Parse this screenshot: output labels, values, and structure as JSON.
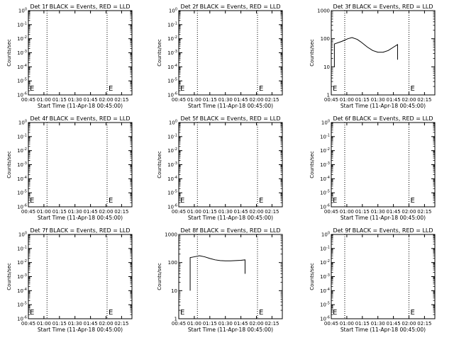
{
  "chart_data": [
    {
      "type": "line",
      "title": "Det 1f BLACK = Events, RED = LLD",
      "ylabel": "Counts/sec",
      "xlabel": "Start Time (11-Apr-18 00:45:00)",
      "y_scale": "log",
      "y_ticks": [
        "10^0",
        "10^-1",
        "10^-2",
        "10^-3",
        "10^-4",
        "10^-5",
        "10^-6"
      ],
      "x_ticks": [
        "00:45",
        "01:00",
        "01:15",
        "01:30",
        "01:45",
        "02:00",
        "02:15"
      ],
      "xlim": [
        "00:45",
        "02:25"
      ],
      "vlines": [
        "01:03",
        "02:01"
      ],
      "markers": [
        {
          "x": "00:45",
          "label": "E"
        },
        {
          "x": "02:01",
          "label": "E"
        }
      ],
      "series": []
    },
    {
      "type": "line",
      "title": "Det 2f BLACK = Events, RED = LLD",
      "ylabel": "Counts/sec",
      "xlabel": "Start Time (11-Apr-18 00:45:00)",
      "y_scale": "log",
      "y_ticks": [
        "10^0",
        "10^-1",
        "10^-2",
        "10^-3",
        "10^-4",
        "10^-5",
        "10^-6"
      ],
      "x_ticks": [
        "00:45",
        "01:00",
        "01:15",
        "01:30",
        "01:45",
        "02:00",
        "02:15"
      ],
      "xlim": [
        "00:45",
        "02:25"
      ],
      "vlines": [
        "01:03",
        "02:01"
      ],
      "markers": [
        {
          "x": "00:45",
          "label": "E"
        },
        {
          "x": "02:01",
          "label": "E"
        }
      ],
      "series": []
    },
    {
      "type": "line",
      "title": "Det 3f BLACK = Events, RED = LLD",
      "ylabel": "Counts/sec",
      "xlabel": "Start Time (11-Apr-18 00:45:00)",
      "y_scale": "log",
      "y_ticks": [
        "1",
        "10",
        "100",
        "1000"
      ],
      "x_ticks": [
        "00:45",
        "01:00",
        "01:15",
        "01:30",
        "01:45",
        "02:00",
        "02:15"
      ],
      "xlim": [
        "00:45",
        "02:25"
      ],
      "vlines": [
        "00:58",
        "02:00"
      ],
      "markers": [
        {
          "x": "00:45",
          "label": "E"
        },
        {
          "x": "02:00",
          "label": "E"
        }
      ],
      "series": [
        {
          "x": [
            "00:48",
            "00:48",
            "00:48",
            "00:55",
            "01:01",
            "01:05",
            "01:10",
            "01:14",
            "01:20",
            "01:25",
            "01:30",
            "01:35",
            "01:40",
            "01:45",
            "01:49",
            "01:49"
          ],
          "y": [
            10,
            60,
            65,
            80,
            100,
            110,
            95,
            75,
            50,
            38,
            33,
            33,
            38,
            50,
            62,
            18
          ]
        }
      ]
    },
    {
      "type": "line",
      "title": "Det 4f BLACK = Events, RED = LLD",
      "ylabel": "Counts/sec",
      "xlabel": "Start Time (11-Apr-18 00:45:00)",
      "y_scale": "log",
      "y_ticks": [
        "10^0",
        "10^-1",
        "10^-2",
        "10^-3",
        "10^-4",
        "10^-5",
        "10^-6"
      ],
      "x_ticks": [
        "00:45",
        "01:00",
        "01:15",
        "01:30",
        "01:45",
        "02:00",
        "02:15"
      ],
      "xlim": [
        "00:45",
        "02:25"
      ],
      "vlines": [
        "01:03",
        "02:01"
      ],
      "markers": [
        {
          "x": "00:45",
          "label": "E"
        },
        {
          "x": "02:01",
          "label": "E"
        }
      ],
      "series": []
    },
    {
      "type": "line",
      "title": "Det 5f BLACK = Events, RED = LLD",
      "ylabel": "Counts/sec",
      "xlabel": "Start Time (11-Apr-18 00:45:00)",
      "y_scale": "log",
      "y_ticks": [
        "10^0",
        "10^-1",
        "10^-2",
        "10^-3",
        "10^-4",
        "10^-5",
        "10^-6"
      ],
      "x_ticks": [
        "00:45",
        "01:00",
        "01:15",
        "01:30",
        "01:45",
        "02:00",
        "02:15"
      ],
      "xlim": [
        "00:45",
        "02:25"
      ],
      "vlines": [
        "01:03",
        "02:01"
      ],
      "markers": [
        {
          "x": "00:45",
          "label": "E"
        },
        {
          "x": "02:01",
          "label": "E"
        }
      ],
      "series": []
    },
    {
      "type": "line",
      "title": "Det 6f BLACK = Events, RED = LLD",
      "ylabel": "Counts/sec",
      "xlabel": "Start Time (11-Apr-18 00:45:00)",
      "y_scale": "log",
      "y_ticks": [
        "10^0",
        "10^-1",
        "10^-2",
        "10^-3",
        "10^-4",
        "10^-5",
        "10^-6"
      ],
      "x_ticks": [
        "00:45",
        "01:00",
        "01:15",
        "01:30",
        "01:45",
        "02:00",
        "02:15"
      ],
      "xlim": [
        "00:45",
        "02:25"
      ],
      "vlines": [
        "00:58",
        "02:00"
      ],
      "markers": [
        {
          "x": "00:45",
          "label": "E"
        },
        {
          "x": "02:00",
          "label": "E"
        }
      ],
      "series": []
    },
    {
      "type": "line",
      "title": "Det 7f BLACK = Events, RED = LLD",
      "ylabel": "Counts/sec",
      "xlabel": "Start Time (11-Apr-18 00:45:00)",
      "y_scale": "log",
      "y_ticks": [
        "10^0",
        "10^-1",
        "10^-2",
        "10^-3",
        "10^-4",
        "10^-5",
        "10^-6"
      ],
      "x_ticks": [
        "00:45",
        "01:00",
        "01:15",
        "01:30",
        "01:45",
        "02:00",
        "02:15"
      ],
      "xlim": [
        "00:45",
        "02:25"
      ],
      "vlines": [
        "01:03",
        "02:01"
      ],
      "markers": [
        {
          "x": "00:45",
          "label": "E"
        },
        {
          "x": "02:01",
          "label": "E"
        }
      ],
      "series": []
    },
    {
      "type": "line",
      "title": "Det 8f BLACK = Events, RED = LLD",
      "ylabel": "Counts/sec",
      "xlabel": "Start Time (11-Apr-18 00:45:00)",
      "y_scale": "log",
      "y_ticks": [
        "1",
        "10",
        "100",
        "1000"
      ],
      "x_ticks": [
        "00:45",
        "01:00",
        "01:15",
        "01:30",
        "01:45",
        "02:00",
        "02:15"
      ],
      "xlim": [
        "00:45",
        "02:25"
      ],
      "vlines": [
        "01:03",
        "02:01"
      ],
      "markers": [
        {
          "x": "00:45",
          "label": "E"
        },
        {
          "x": "02:01",
          "label": "E"
        }
      ],
      "series": [
        {
          "x": [
            "00:56",
            "00:56",
            "00:56",
            "01:00",
            "01:05",
            "01:10",
            "01:15",
            "01:20",
            "01:25",
            "01:30",
            "01:35",
            "01:40",
            "01:45",
            "01:49",
            "01:49"
          ],
          "y": [
            10,
            130,
            150,
            160,
            175,
            160,
            140,
            125,
            118,
            115,
            115,
            118,
            120,
            125,
            40
          ]
        }
      ]
    },
    {
      "type": "line",
      "title": "Det 9f BLACK = Events, RED = LLD",
      "ylabel": "Counts/sec",
      "xlabel": "Start Time (11-Apr-18 00:45:00)",
      "y_scale": "log",
      "y_ticks": [
        "10^0",
        "10^-1",
        "10^-2",
        "10^-3",
        "10^-4",
        "10^-5",
        "10^-6"
      ],
      "x_ticks": [
        "00:45",
        "01:00",
        "01:15",
        "01:30",
        "01:45",
        "02:00",
        "02:15"
      ],
      "xlim": [
        "00:45",
        "02:25"
      ],
      "vlines": [
        "00:58",
        "02:00"
      ],
      "markers": [
        {
          "x": "00:45",
          "label": "E"
        },
        {
          "x": "02:00",
          "label": "E"
        }
      ],
      "series": []
    }
  ]
}
